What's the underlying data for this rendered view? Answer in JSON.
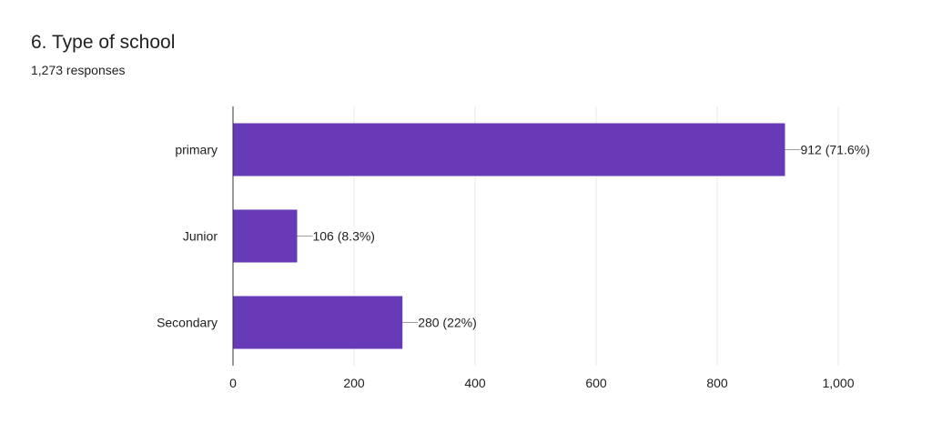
{
  "question": {
    "title": "6. Type of school",
    "responses": "1,273 responses"
  },
  "colors": {
    "bar": "#673ab7",
    "grid": "#e8e8e8",
    "axis": "#333333",
    "text": "#202124",
    "leader": "#9e9e9e"
  },
  "chart_data": {
    "type": "bar",
    "orientation": "horizontal",
    "categories": [
      "primary",
      "Junior",
      "Secondary"
    ],
    "values": [
      912,
      106,
      280
    ],
    "data_labels": [
      "912 (71.6%)",
      "106 (8.3%)",
      "280 (22%)"
    ],
    "xlim": [
      0,
      1000
    ],
    "x_ticks": [
      0,
      200,
      400,
      600,
      800,
      1000
    ],
    "x_tick_labels": [
      "0",
      "200",
      "400",
      "600",
      "800",
      "1,000"
    ],
    "grid": true,
    "legend": "none"
  }
}
